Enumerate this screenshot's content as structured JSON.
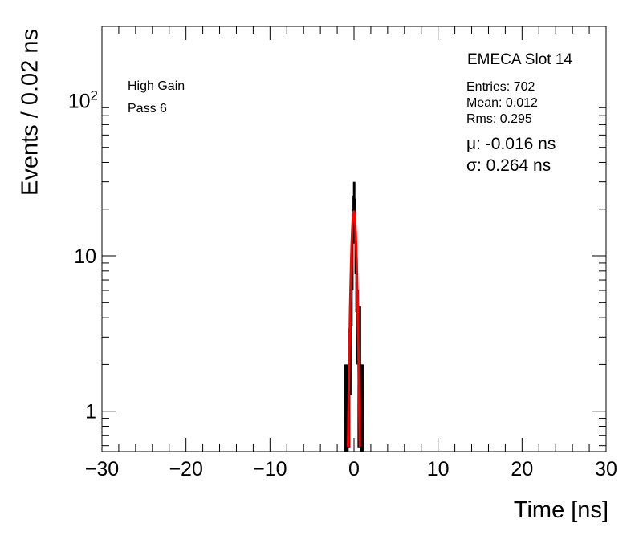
{
  "chart_data": {
    "type": "histogram",
    "title": "EMECA Slot 14",
    "xlabel": "Time [ns]",
    "ylabel": "Events / 0.02 ns",
    "xlim": [
      -30,
      30
    ],
    "ylim": [
      0.55,
      300
    ],
    "yscale": "log",
    "x_ticks": [
      "−30",
      "−20",
      "−10",
      "0",
      "10",
      "20",
      "30"
    ],
    "x_tick_values": [
      -30,
      -20,
      -10,
      0,
      10,
      20,
      30
    ],
    "y_ticks": [
      {
        "value": 1,
        "base": "1",
        "exp": ""
      },
      {
        "value": 10,
        "base": "10",
        "exp": ""
      },
      {
        "value": 100,
        "base": "10",
        "exp": "2"
      }
    ],
    "annotations": [
      "High Gain",
      "Pass 6"
    ],
    "stats": {
      "entries": "Entries: 702",
      "mean": "Mean: 0.012",
      "rms": "Rms: 0.295",
      "mu": "μ: -0.016 ns",
      "sigma": "σ: 0.264 ns"
    },
    "histogram": {
      "bin_width": 0.02,
      "bins": [
        {
          "x": -1.0,
          "y": 1
        },
        {
          "x": -0.78,
          "y": 1
        },
        {
          "x": -0.58,
          "y": 2
        },
        {
          "x": -0.44,
          "y": 3
        },
        {
          "x": -0.3,
          "y": 6
        },
        {
          "x": -0.2,
          "y": 9
        },
        {
          "x": -0.1,
          "y": 16
        },
        {
          "x": -0.04,
          "y": 20
        },
        {
          "x": 0.02,
          "y": 25
        },
        {
          "x": 0.1,
          "y": 19
        },
        {
          "x": 0.2,
          "y": 11
        },
        {
          "x": 0.3,
          "y": 7
        },
        {
          "x": 0.42,
          "y": 4
        },
        {
          "x": 0.56,
          "y": 2
        },
        {
          "x": 0.7,
          "y": 3
        },
        {
          "x": 0.82,
          "y": 1
        },
        {
          "x": 1.0,
          "y": 1
        }
      ],
      "color": "#000000"
    },
    "fit": {
      "type": "gaussian",
      "mu": -0.016,
      "sigma": 0.264,
      "peak": 19.3,
      "color": "#ff0000"
    }
  }
}
